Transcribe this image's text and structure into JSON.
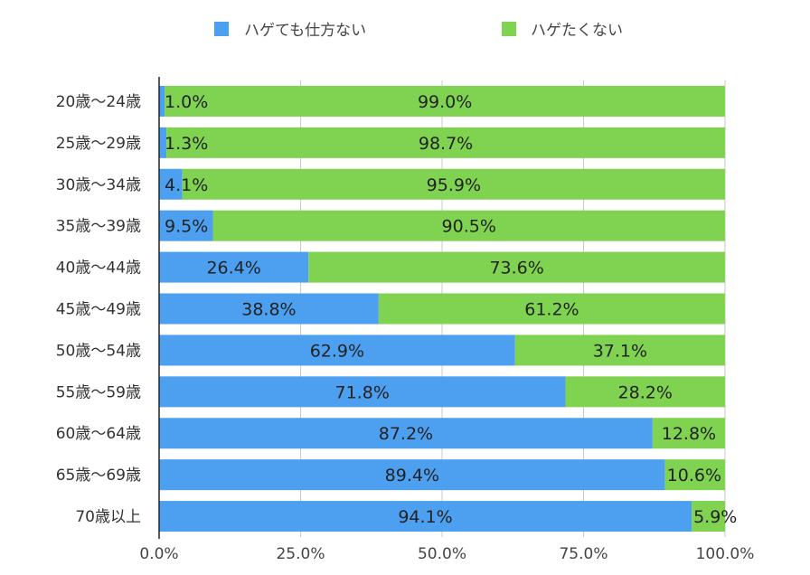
{
  "chart_data": {
    "type": "bar",
    "orientation": "horizontal",
    "stacked": "percent",
    "categories": [
      "20歳〜24歳",
      "25歳〜29歳",
      "30歳〜34歳",
      "35歳〜39歳",
      "40歳〜44歳",
      "45歳〜49歳",
      "50歳〜54歳",
      "55歳〜59歳",
      "60歳〜64歳",
      "65歳〜69歳",
      "70歳以上"
    ],
    "series": [
      {
        "name": "ハゲても仕方ない",
        "color": "#4da0f0",
        "values": [
          1.0,
          1.3,
          4.1,
          9.5,
          26.4,
          38.8,
          62.9,
          71.8,
          87.2,
          89.4,
          94.1
        ],
        "labels": [
          "1.0%",
          "1.3%",
          "4.1%",
          "9.5%",
          "26.4%",
          "38.8%",
          "62.9%",
          "71.8%",
          "87.2%",
          "89.4%",
          "94.1%"
        ]
      },
      {
        "name": "ハゲたくない",
        "color": "#7fd351",
        "values": [
          99.0,
          98.7,
          95.9,
          90.5,
          73.6,
          61.2,
          37.1,
          28.2,
          12.8,
          10.6,
          5.9
        ],
        "labels": [
          "99.0%",
          "98.7%",
          "95.9%",
          "90.5%",
          "73.6%",
          "61.2%",
          "37.1%",
          "28.2%",
          "12.8%",
          "10.6%",
          "5.9%"
        ]
      }
    ],
    "xlim": [
      0,
      100
    ],
    "xticks": [
      0,
      25,
      50,
      75,
      100
    ],
    "xtick_labels": [
      "0.0%",
      "25.0%",
      "50.0%",
      "75.0%",
      "100.0%"
    ],
    "grid": true,
    "legend_position": "top"
  }
}
